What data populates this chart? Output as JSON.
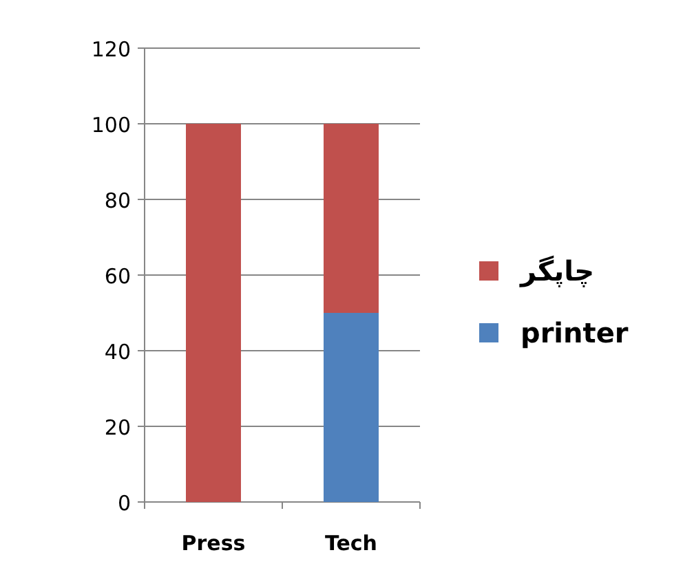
{
  "chart_data": {
    "type": "bar",
    "stacked": true,
    "categories": [
      "Press",
      "Tech"
    ],
    "series": [
      {
        "name": "printer",
        "color": "#4f81bd",
        "values": [
          0,
          50
        ]
      },
      {
        "name": "چاپگر",
        "color": "#c0504d",
        "values": [
          100,
          50
        ]
      }
    ],
    "ylim": [
      0,
      120
    ],
    "yticks": [
      0,
      20,
      40,
      60,
      80,
      100,
      120
    ],
    "grid": "y",
    "legend": "right"
  }
}
